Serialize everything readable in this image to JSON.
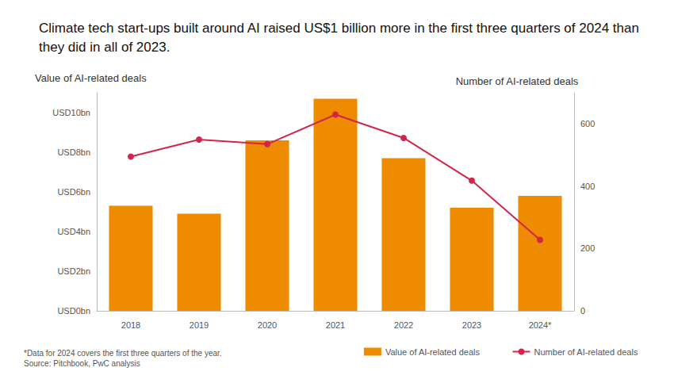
{
  "chart_data": {
    "type": "bar",
    "title": "Climate tech start-ups built around AI raised US$1 billion more in the first three quarters of 2024 than they did in all of 2023.",
    "y_label": "Value of AI-related deals",
    "y2_label": "Number of AI-related deals",
    "notes": [
      "*Data for 2024 covers the first three quarters of the year.",
      "Source: Pitchbook, PwC analysis"
    ],
    "categories": [
      "2018",
      "2019",
      "2020",
      "2021",
      "2022",
      "2023",
      "2024*"
    ],
    "series": [
      {
        "name": "Value of AI-related deals",
        "type": "bar",
        "color": "#ee8b00",
        "values": [
          5.3,
          4.9,
          8.6,
          10.7,
          7.7,
          5.2,
          5.8
        ]
      },
      {
        "name": "Number of AI-related deals",
        "type": "line",
        "color": "#d2254a",
        "marker": "circle",
        "axis": "y2",
        "values": [
          495,
          550,
          535,
          630,
          555,
          418,
          228
        ]
      }
    ],
    "ylim": [
      0,
      11
    ],
    "yticks": [
      {
        "value": 0,
        "label": "USD0bn"
      },
      {
        "value": 2,
        "label": "USD2bn"
      },
      {
        "value": 4,
        "label": "USD4bn"
      },
      {
        "value": 6,
        "label": "USD6bn"
      },
      {
        "value": 8,
        "label": "USD8bn"
      },
      {
        "value": 10,
        "label": "USD10bn"
      }
    ],
    "y2lim": [
      0,
      700
    ],
    "y2ticks": [
      0,
      200,
      400,
      600
    ],
    "grid": false,
    "legend": "bottom right"
  }
}
